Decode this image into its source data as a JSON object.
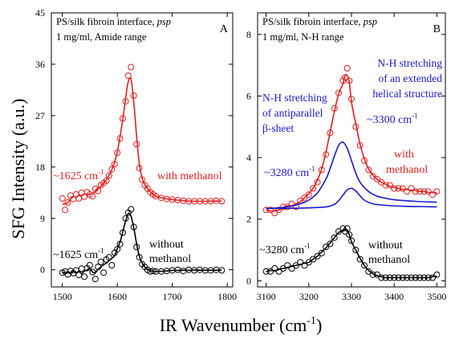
{
  "figure": {
    "ylabel": "SFG Intensity (a.u.)",
    "xlabel_main": "IR Wavenumber (cm",
    "xlabel_sup": "-1",
    "xlabel_close": ")"
  },
  "chart_data": [
    {
      "type": "scatter",
      "panel_letter": "A",
      "title_line1_prefix": "PS/silk fibroin interface, ",
      "title_line1_italic": "psp",
      "title_line2": "1 mg/ml, Amide range",
      "xlim": [
        1480,
        1810
      ],
      "ylim": [
        -3,
        45
      ],
      "xticks": [
        1500,
        1600,
        1700,
        1800
      ],
      "yticks": [
        0,
        9,
        18,
        27,
        36,
        45
      ],
      "series": [
        {
          "name": "with methanol",
          "color": "#e02020",
          "marker": "open-circle",
          "fit_line": true,
          "peak_label": "~1625 cm",
          "peak_label_sup": "-1",
          "series_label": "with methanol",
          "x": [
            1500,
            1505,
            1510,
            1515,
            1520,
            1525,
            1530,
            1535,
            1540,
            1545,
            1550,
            1555,
            1560,
            1565,
            1570,
            1575,
            1580,
            1585,
            1590,
            1595,
            1600,
            1605,
            1610,
            1615,
            1620,
            1625,
            1630,
            1635,
            1640,
            1645,
            1650,
            1655,
            1660,
            1665,
            1670,
            1680,
            1690,
            1700,
            1710,
            1720,
            1730,
            1740,
            1750,
            1760,
            1770,
            1780,
            1790
          ],
          "y": [
            12.5,
            10.5,
            11.8,
            13.0,
            12.4,
            13.2,
            12.5,
            13.5,
            12.8,
            13.6,
            13.2,
            12.9,
            14.2,
            13.8,
            14.8,
            15.2,
            15.6,
            16.5,
            17.6,
            18.5,
            20.5,
            23.0,
            26.5,
            29.5,
            34.0,
            35.5,
            30.5,
            22.0,
            17.8,
            15.8,
            14.8,
            14.2,
            13.6,
            13.2,
            12.9,
            12.6,
            12.4,
            12.3,
            12.2,
            12.1,
            12.0,
            12.0,
            12.0,
            12.0,
            12.0,
            12.1,
            12.0
          ]
        },
        {
          "name": "without methanol",
          "color": "#000000",
          "marker": "open-circle",
          "fit_line": true,
          "peak_label": "~1625 cm",
          "peak_label_sup": "-1",
          "series_label_line1": "without",
          "series_label_line2": "methanol",
          "x": [
            1500,
            1505,
            1510,
            1515,
            1520,
            1525,
            1530,
            1535,
            1540,
            1545,
            1550,
            1555,
            1560,
            1565,
            1570,
            1575,
            1580,
            1585,
            1590,
            1595,
            1600,
            1605,
            1610,
            1615,
            1620,
            1625,
            1630,
            1635,
            1640,
            1645,
            1650,
            1655,
            1660,
            1665,
            1670,
            1680,
            1690,
            1700,
            1710,
            1720,
            1730,
            1740,
            1750,
            1760,
            1770,
            1780,
            1790
          ],
          "y": [
            -0.5,
            -0.3,
            -0.8,
            -0.2,
            -0.6,
            -0.1,
            -0.9,
            0.2,
            -1.2,
            0.3,
            0.8,
            -0.4,
            -1.6,
            0.5,
            1.4,
            -0.5,
            1.8,
            2.2,
            0.8,
            3.0,
            3.6,
            4.5,
            6.5,
            9.0,
            10.0,
            10.6,
            7.5,
            4.0,
            2.2,
            1.0,
            0.5,
            0.0,
            -0.3,
            -0.2,
            -0.3,
            -0.3,
            -0.2,
            -0.1,
            0.0,
            -0.2,
            0.0,
            -0.1,
            0.0,
            -0.1,
            -0.1,
            0.0,
            -0.1
          ]
        }
      ]
    },
    {
      "type": "scatter",
      "panel_letter": "B",
      "title_line1_prefix": "PS/silk fibroin interface, ",
      "title_line1_italic": "psp",
      "title_line2": "1 mg/ml, N-H range",
      "xlim": [
        3080,
        3520
      ],
      "ylim": [
        -0.2,
        8.7
      ],
      "xticks": [
        3100,
        3200,
        3300,
        3400,
        3500
      ],
      "yticks": [
        0,
        2,
        4,
        6,
        8
      ],
      "series": [
        {
          "name": "with methanol",
          "color": "#e02020",
          "marker": "open-circle",
          "fit_line": true,
          "series_label_line1": "with",
          "series_label_line2": "methanol",
          "x": [
            3100,
            3110,
            3120,
            3130,
            3140,
            3150,
            3160,
            3170,
            3180,
            3190,
            3200,
            3210,
            3220,
            3230,
            3240,
            3250,
            3260,
            3270,
            3280,
            3285,
            3290,
            3295,
            3300,
            3310,
            3320,
            3330,
            3340,
            3350,
            3360,
            3370,
            3380,
            3390,
            3400,
            3410,
            3420,
            3430,
            3440,
            3450,
            3460,
            3470,
            3480,
            3490,
            3500
          ],
          "y": [
            2.3,
            2.3,
            2.2,
            2.3,
            2.4,
            2.4,
            2.5,
            2.4,
            2.6,
            2.7,
            2.8,
            3.0,
            3.2,
            3.6,
            4.1,
            4.8,
            5.6,
            6.1,
            6.5,
            6.6,
            6.9,
            6.5,
            5.9,
            5.0,
            4.4,
            3.9,
            3.6,
            3.4,
            3.3,
            3.2,
            3.1,
            3.1,
            3.0,
            3.0,
            3.0,
            2.9,
            3.0,
            2.9,
            2.9,
            2.9,
            2.9,
            2.8,
            2.9
          ]
        },
        {
          "name": "without methanol",
          "color": "#000000",
          "marker": "open-circle",
          "fit_line": true,
          "peak_label": "~3280 cm",
          "peak_label_sup": "-1",
          "series_label_line1": "without",
          "series_label_line2": "methanol",
          "x": [
            3100,
            3110,
            3120,
            3130,
            3140,
            3150,
            3160,
            3170,
            3180,
            3190,
            3200,
            3210,
            3220,
            3230,
            3240,
            3250,
            3260,
            3270,
            3280,
            3285,
            3290,
            3295,
            3300,
            3310,
            3320,
            3330,
            3340,
            3350,
            3360,
            3370,
            3380,
            3390,
            3400,
            3410,
            3420,
            3430,
            3440,
            3450,
            3460,
            3470,
            3480,
            3490,
            3500
          ],
          "y": [
            0.3,
            0.3,
            0.4,
            0.3,
            0.4,
            0.5,
            0.4,
            0.5,
            0.6,
            0.5,
            0.6,
            0.7,
            0.8,
            0.9,
            1.1,
            1.2,
            1.4,
            1.6,
            1.7,
            1.6,
            1.7,
            1.5,
            1.3,
            1.0,
            0.7,
            0.5,
            0.3,
            0.2,
            0.2,
            0.1,
            0.1,
            0.1,
            0.1,
            0.1,
            0.1,
            0.1,
            0.1,
            0.1,
            0.1,
            0.1,
            0.1,
            0.1,
            0.2
          ]
        },
        {
          "name": "component 1",
          "color": "#1a1acc",
          "marker": "none",
          "peak_label": "~3280 cm",
          "peak_label_sup": "-1",
          "annotation_lines": [
            "N-H stretching",
            "of antiparallel",
            "β-sheet"
          ],
          "x": [
            3100,
            3140,
            3180,
            3200,
            3220,
            3240,
            3250,
            3260,
            3270,
            3280,
            3290,
            3300,
            3310,
            3320,
            3340,
            3360,
            3380,
            3400,
            3450,
            3500
          ],
          "y": [
            2.35,
            2.38,
            2.5,
            2.62,
            2.85,
            3.3,
            3.65,
            4.05,
            4.4,
            4.5,
            4.3,
            3.9,
            3.5,
            3.2,
            2.9,
            2.75,
            2.68,
            2.63,
            2.58,
            2.55
          ]
        },
        {
          "name": "component 2",
          "color": "#1a1acc",
          "marker": "none",
          "peak_label": "~3300 cm",
          "peak_label_sup": "-1",
          "annotation_lines": [
            "N-H stretching",
            "of an extended",
            "helical structure"
          ],
          "x": [
            3100,
            3180,
            3240,
            3260,
            3270,
            3280,
            3290,
            3300,
            3310,
            3320,
            3330,
            3350,
            3380,
            3420,
            3460,
            3500
          ],
          "y": [
            2.35,
            2.36,
            2.4,
            2.48,
            2.6,
            2.78,
            2.95,
            3.0,
            2.92,
            2.76,
            2.62,
            2.5,
            2.45,
            2.42,
            2.41,
            2.4
          ]
        }
      ]
    }
  ]
}
